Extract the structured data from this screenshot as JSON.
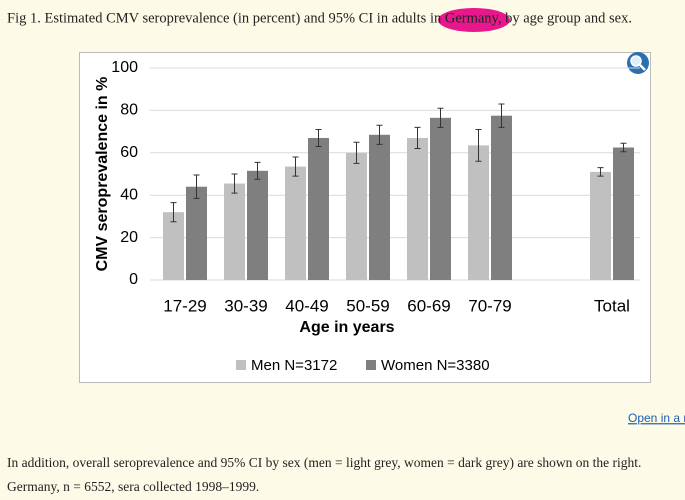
{
  "caption": "Fig 1. Estimated CMV seroprevalence (in percent) and 95% CI in adults in Germany, by age group and sex.",
  "chart_data": {
    "type": "bar",
    "ylabel": "CMV seroprevalence in %",
    "xlabel": "Age in years",
    "categories": [
      "17-29",
      "30-39",
      "40-49",
      "50-59",
      "60-69",
      "70-79",
      null,
      "Total"
    ],
    "series": [
      {
        "name": "Men N=3172",
        "color": "#c0c0c0",
        "values": [
          32,
          45.5,
          53.5,
          60,
          67,
          63.5,
          null,
          51
        ],
        "errors": [
          4.5,
          4.5,
          4.5,
          5,
          5,
          7.5,
          null,
          2
        ]
      },
      {
        "name": "Women N=3380",
        "color": "#7f7f7f",
        "values": [
          44,
          51.5,
          67,
          68.5,
          76.5,
          77.5,
          null,
          62.5
        ],
        "errors": [
          5.5,
          4,
          4,
          4.5,
          4.5,
          5.5,
          null,
          2
        ]
      }
    ],
    "ylim": [
      0,
      100
    ],
    "yticks": [
      0,
      20,
      40,
      60,
      80,
      100
    ],
    "grid": true,
    "legend": "bottom"
  },
  "link": "Open in a n",
  "paragraph": [
    "In addition, overall seroprevalence and 95% CI by sex (men = light grey, women = dark grey) are shown on the right.",
    "Germany, n = 6552, sera collected 1998–1999."
  ]
}
